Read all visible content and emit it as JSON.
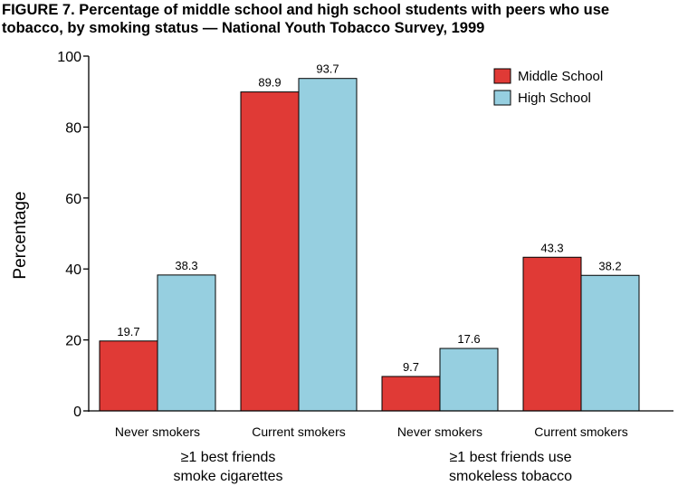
{
  "title_line1": "FIGURE 7. Percentage of middle school and high school students with peers who use",
  "title_line2": "tobacco, by smoking status — National Youth Tobacco Survey, 1999",
  "chart_data": {
    "type": "bar",
    "title": "FIGURE 7. Percentage of middle school and high school students with peers who use tobacco, by smoking status — National Youth Tobacco Survey, 1999",
    "xlabel": "",
    "ylabel": "Percentage",
    "ylim": [
      0,
      100
    ],
    "yticks": [
      "0",
      "20",
      "40",
      "60",
      "80",
      "100"
    ],
    "categories": [
      "Never smokers",
      "Current smokers",
      "Never smokers",
      "Current smokers"
    ],
    "groups": [
      {
        "line1": "≥1 best friends",
        "line2": "smoke cigarettes"
      },
      {
        "line1": "≥1 best friends use",
        "line2": "smokeless tobacco"
      }
    ],
    "series": [
      {
        "name": "Middle School",
        "color": "#e03a36",
        "values": [
          19.7,
          89.9,
          9.7,
          43.3
        ],
        "labels": [
          "19.7",
          "89.9",
          "9.7",
          "43.3"
        ]
      },
      {
        "name": "High School",
        "color": "#96cfe0",
        "values": [
          38.3,
          93.7,
          17.6,
          38.2
        ],
        "labels": [
          "38.3",
          "93.7",
          "17.6",
          "38.2"
        ]
      }
    ],
    "legend_position": "top-right",
    "grid": false
  }
}
